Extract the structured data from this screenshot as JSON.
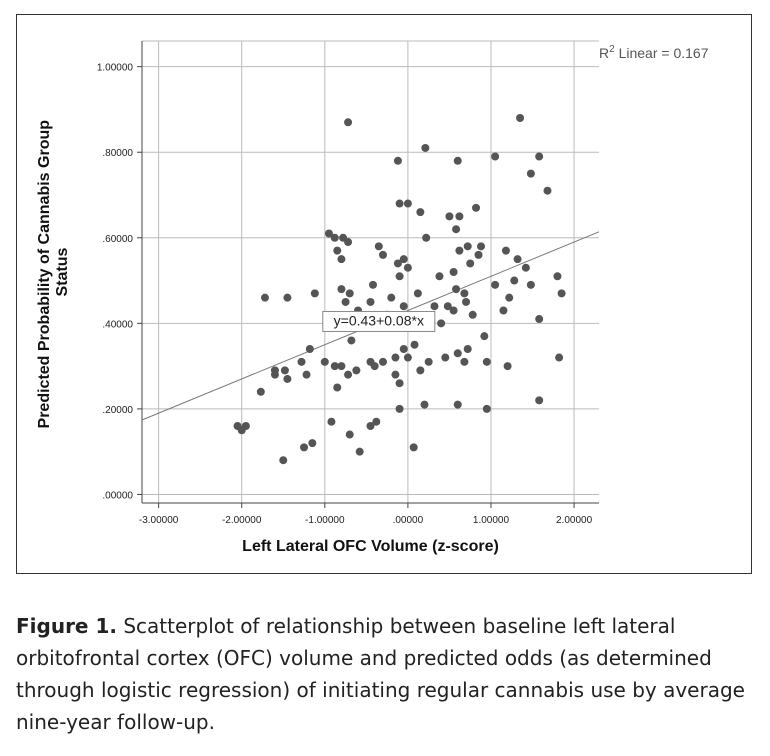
{
  "chart_data": {
    "type": "scatter",
    "xlabel": "Left Lateral OFC Volume (z-score)",
    "ylabel_line1": "Predicted Probability of Cannabis Group",
    "ylabel_line2": "Status",
    "xlim": [
      -3.2,
      2.3
    ],
    "ylim": [
      -0.02,
      1.06
    ],
    "xticks": [
      -3.0,
      -2.0,
      -1.0,
      0.0,
      1.0,
      2.0
    ],
    "xtick_labels": [
      "-3.00000",
      "-2.00000",
      "-1.00000",
      ".00000",
      "1.00000",
      "2.00000"
    ],
    "yticks": [
      0.0,
      0.2,
      0.4,
      0.6,
      0.8,
      1.0
    ],
    "ytick_labels": [
      ".00000",
      ".20000",
      ".40000",
      ".60000",
      ".80000",
      "1.00000"
    ],
    "grid": true,
    "r2_prefix": "R",
    "r2_sup": "2",
    "r2_label": " Linear = 0.167",
    "equation": "y=0.43+0.08*x",
    "fit": {
      "intercept": 0.43,
      "slope": 0.08
    },
    "points": [
      [
        -0.72,
        0.87
      ],
      [
        0.21,
        0.81
      ],
      [
        1.35,
        0.88
      ],
      [
        1.58,
        0.79
      ],
      [
        -0.12,
        0.78
      ],
      [
        0.6,
        0.78
      ],
      [
        1.05,
        0.79
      ],
      [
        1.48,
        0.75
      ],
      [
        1.68,
        0.71
      ],
      [
        -0.1,
        0.68
      ],
      [
        0.0,
        0.68
      ],
      [
        0.15,
        0.66
      ],
      [
        0.82,
        0.67
      ],
      [
        0.5,
        0.65
      ],
      [
        0.62,
        0.65
      ],
      [
        -0.95,
        0.61
      ],
      [
        -0.88,
        0.6
      ],
      [
        -0.78,
        0.6
      ],
      [
        -0.72,
        0.59
      ],
      [
        0.22,
        0.6
      ],
      [
        0.58,
        0.62
      ],
      [
        0.72,
        0.58
      ],
      [
        0.88,
        0.58
      ],
      [
        0.62,
        0.57
      ],
      [
        0.85,
        0.56
      ],
      [
        -0.35,
        0.58
      ],
      [
        -0.3,
        0.56
      ],
      [
        -0.85,
        0.57
      ],
      [
        -0.8,
        0.55
      ],
      [
        -0.05,
        0.55
      ],
      [
        -0.12,
        0.54
      ],
      [
        1.18,
        0.57
      ],
      [
        1.32,
        0.55
      ],
      [
        1.42,
        0.53
      ],
      [
        0.0,
        0.53
      ],
      [
        0.75,
        0.54
      ],
      [
        0.55,
        0.52
      ],
      [
        -0.1,
        0.51
      ],
      [
        0.38,
        0.51
      ],
      [
        1.28,
        0.5
      ],
      [
        1.05,
        0.49
      ],
      [
        1.8,
        0.51
      ],
      [
        1.48,
        0.49
      ],
      [
        -0.8,
        0.48
      ],
      [
        -0.7,
        0.47
      ],
      [
        -0.42,
        0.49
      ],
      [
        -0.2,
        0.46
      ],
      [
        0.12,
        0.47
      ],
      [
        0.68,
        0.47
      ],
      [
        0.58,
        0.48
      ],
      [
        -1.72,
        0.46
      ],
      [
        -1.45,
        0.46
      ],
      [
        -1.12,
        0.47
      ],
      [
        -0.45,
        0.45
      ],
      [
        -0.75,
        0.45
      ],
      [
        1.85,
        0.47
      ],
      [
        0.7,
        0.45
      ],
      [
        0.55,
        0.43
      ],
      [
        0.32,
        0.44
      ],
      [
        1.22,
        0.46
      ],
      [
        1.15,
        0.43
      ],
      [
        1.58,
        0.41
      ],
      [
        0.78,
        0.42
      ],
      [
        -0.6,
        0.43
      ],
      [
        -0.25,
        0.42
      ],
      [
        -0.05,
        0.44
      ],
      [
        -0.18,
        0.41
      ],
      [
        0.4,
        0.4
      ],
      [
        0.48,
        0.44
      ],
      [
        -1.18,
        0.34
      ],
      [
        -0.68,
        0.36
      ],
      [
        -0.05,
        0.34
      ],
      [
        0.08,
        0.35
      ],
      [
        0.25,
        0.31
      ],
      [
        0.6,
        0.33
      ],
      [
        0.72,
        0.34
      ],
      [
        0.92,
        0.37
      ],
      [
        -1.0,
        0.31
      ],
      [
        -1.28,
        0.31
      ],
      [
        -1.48,
        0.29
      ],
      [
        -1.6,
        0.29
      ],
      [
        -1.6,
        0.28
      ],
      [
        -0.88,
        0.3
      ],
      [
        -0.8,
        0.3
      ],
      [
        -0.62,
        0.29
      ],
      [
        -0.72,
        0.28
      ],
      [
        -0.4,
        0.3
      ],
      [
        -0.45,
        0.31
      ],
      [
        -0.3,
        0.31
      ],
      [
        -0.15,
        0.32
      ],
      [
        0.0,
        0.32
      ],
      [
        0.15,
        0.29
      ],
      [
        0.45,
        0.32
      ],
      [
        0.68,
        0.31
      ],
      [
        0.95,
        0.31
      ],
      [
        1.2,
        0.3
      ],
      [
        1.82,
        0.32
      ],
      [
        -1.22,
        0.28
      ],
      [
        -1.45,
        0.27
      ],
      [
        -0.85,
        0.25
      ],
      [
        -0.15,
        0.28
      ],
      [
        -0.1,
        0.26
      ],
      [
        -1.77,
        0.24
      ],
      [
        0.2,
        0.21
      ],
      [
        0.6,
        0.21
      ],
      [
        0.95,
        0.2
      ],
      [
        1.58,
        0.22
      ],
      [
        -0.1,
        0.2
      ],
      [
        -2.05,
        0.16
      ],
      [
        -1.95,
        0.16
      ],
      [
        -2.0,
        0.15
      ],
      [
        -0.92,
        0.17
      ],
      [
        -0.45,
        0.16
      ],
      [
        -0.38,
        0.17
      ],
      [
        -0.7,
        0.14
      ],
      [
        -0.58,
        0.1
      ],
      [
        -1.15,
        0.12
      ],
      [
        -1.25,
        0.11
      ],
      [
        0.07,
        0.11
      ],
      [
        -1.5,
        0.08
      ]
    ]
  },
  "caption": {
    "label": "Figure 1.",
    "text": " Scatterplot of relationship between baseline left lateral orbitofrontal cortex (OFC) volume and predicted odds (as determined through logistic regression) of initiating regular cannabis use by average nine-year follow-up."
  }
}
